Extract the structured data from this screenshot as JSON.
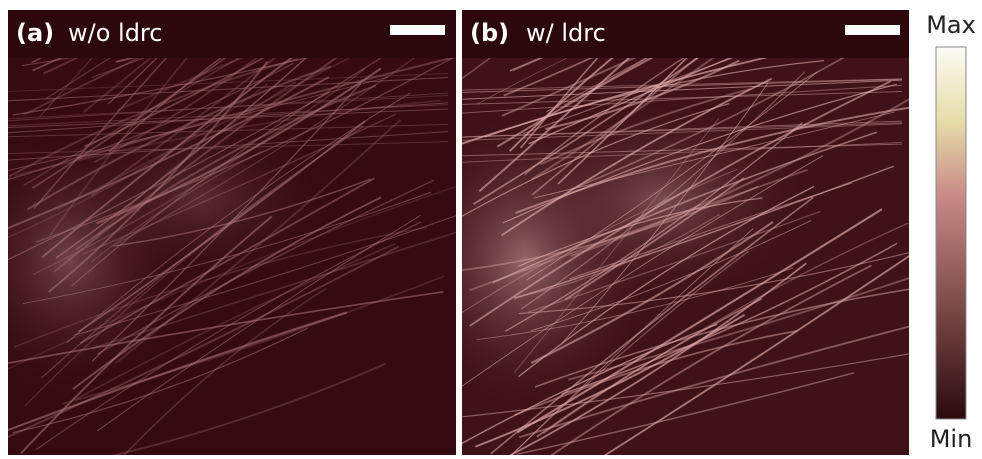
{
  "panels": [
    {
      "tag": "(a)",
      "label": "w/o ldrc"
    },
    {
      "tag": "(b)",
      "label": "w/ ldrc"
    }
  ],
  "colorbar": {
    "max": "Max",
    "min": "Min"
  }
}
